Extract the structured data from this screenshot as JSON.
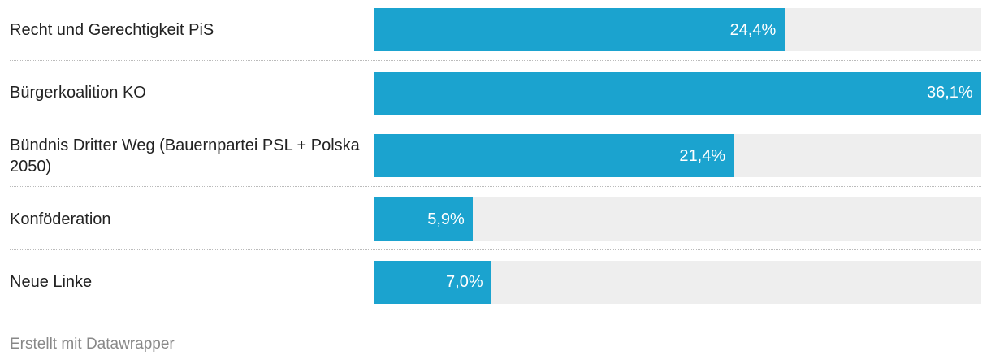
{
  "chart_data": {
    "type": "bar",
    "categories": [
      "Recht und Gerechtigkeit PiS",
      "Bürgerkoalition KO",
      "Bündnis Dritter Weg (Bauernpartei PSL + Polska 2050)",
      "Konföderation",
      "Neue Linke"
    ],
    "values": [
      24.4,
      36.1,
      21.4,
      5.9,
      7.0
    ],
    "value_labels": [
      "24,4%",
      "36,1%",
      "21,4%",
      "5,9%",
      "7,0%"
    ],
    "color": "#1ba3cf",
    "xlim": [
      0,
      36.1
    ],
    "credit": "Erstellt mit Datawrapper"
  }
}
